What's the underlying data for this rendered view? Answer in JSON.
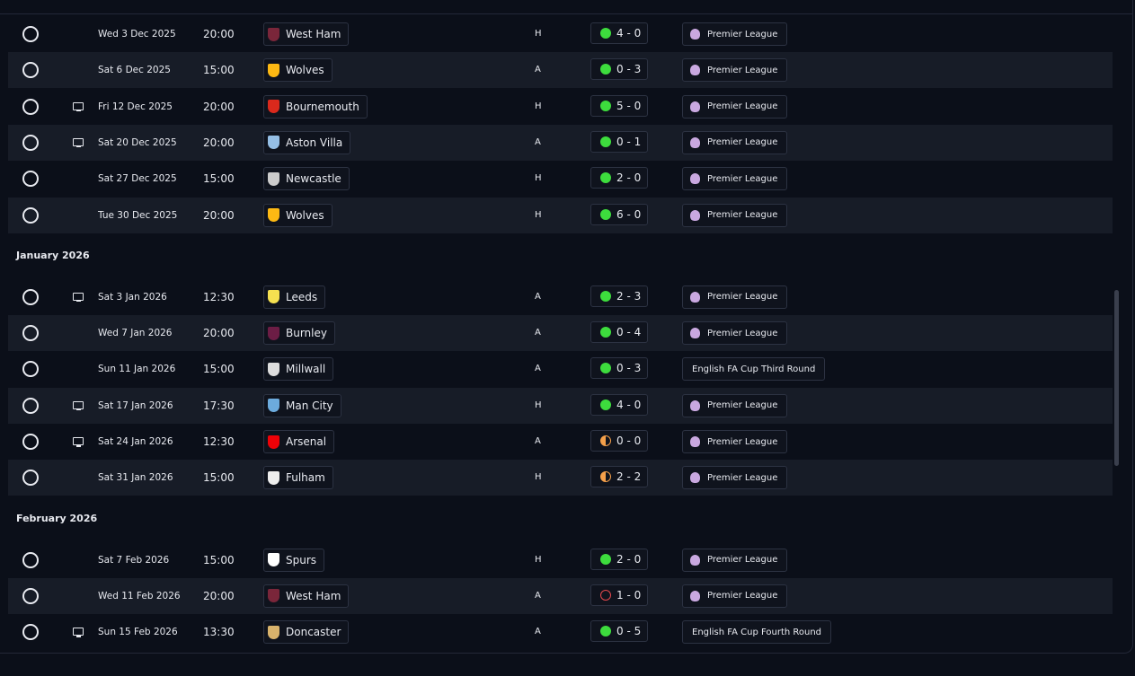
{
  "groups": [
    {
      "rows": [
        {
          "date": "Wed 3 Dec 2025",
          "time": "20:00",
          "opponent": "West Ham",
          "crest": "#7a263a",
          "venue": "H",
          "result": "4 - 0",
          "status_color": "#3ddc3d",
          "status_fill": true,
          "tv": false,
          "competition": "Premier League",
          "comp_icon": true
        },
        {
          "date": "Sat 6 Dec 2025",
          "time": "15:00",
          "opponent": "Wolves",
          "crest": "#fdb913",
          "venue": "A",
          "result": "0 - 3",
          "status_color": "#3ddc3d",
          "status_fill": true,
          "tv": false,
          "competition": "Premier League",
          "comp_icon": true
        },
        {
          "date": "Fri 12 Dec 2025",
          "time": "20:00",
          "opponent": "Bournemouth",
          "crest": "#da291c",
          "venue": "H",
          "result": "5 - 0",
          "status_color": "#3ddc3d",
          "status_fill": true,
          "tv": true,
          "competition": "Premier League",
          "comp_icon": true
        },
        {
          "date": "Sat 20 Dec 2025",
          "time": "20:00",
          "opponent": "Aston Villa",
          "crest": "#95bfe5",
          "venue": "A",
          "result": "0 - 1",
          "status_color": "#3ddc3d",
          "status_fill": true,
          "tv": true,
          "competition": "Premier League",
          "comp_icon": true
        },
        {
          "date": "Sat 27 Dec 2025",
          "time": "15:00",
          "opponent": "Newcastle",
          "crest": "#cccccc",
          "venue": "H",
          "result": "2 - 0",
          "status_color": "#3ddc3d",
          "status_fill": true,
          "tv": false,
          "competition": "Premier League",
          "comp_icon": true
        },
        {
          "date": "Tue 30 Dec 2025",
          "time": "20:00",
          "opponent": "Wolves",
          "crest": "#fdb913",
          "venue": "H",
          "result": "6 - 0",
          "status_color": "#3ddc3d",
          "status_fill": true,
          "tv": false,
          "competition": "Premier League",
          "comp_icon": true
        }
      ]
    },
    {
      "title": "January 2026",
      "rows": [
        {
          "date": "Sat 3 Jan 2026",
          "time": "12:30",
          "opponent": "Leeds",
          "crest": "#f5e050",
          "venue": "A",
          "result": "2 - 3",
          "status_color": "#3ddc3d",
          "status_fill": true,
          "tv": true,
          "competition": "Premier League",
          "comp_icon": true
        },
        {
          "date": "Wed 7 Jan 2026",
          "time": "20:00",
          "opponent": "Burnley",
          "crest": "#6c1d45",
          "venue": "A",
          "result": "0 - 4",
          "status_color": "#3ddc3d",
          "status_fill": true,
          "tv": false,
          "competition": "Premier League",
          "comp_icon": true
        },
        {
          "date": "Sun 11 Jan 2026",
          "time": "15:00",
          "opponent": "Millwall",
          "crest": "#dddddd",
          "venue": "A",
          "result": "0 - 3",
          "status_color": "#3ddc3d",
          "status_fill": true,
          "tv": false,
          "competition": "English FA Cup Third Round",
          "comp_icon": false
        },
        {
          "date": "Sat 17 Jan 2026",
          "time": "17:30",
          "opponent": "Man City",
          "crest": "#6cabdd",
          "venue": "H",
          "result": "4 - 0",
          "status_color": "#3ddc3d",
          "status_fill": true,
          "tv": true,
          "competition": "Premier League",
          "comp_icon": true
        },
        {
          "date": "Sat 24 Jan 2026",
          "time": "12:30",
          "opponent": "Arsenal",
          "crest": "#ef0107",
          "venue": "A",
          "result": "0 - 0",
          "status_color": "#f5a04a",
          "status_fill": true,
          "tv": true,
          "competition": "Premier League",
          "comp_icon": true
        },
        {
          "date": "Sat 31 Jan 2026",
          "time": "15:00",
          "opponent": "Fulham",
          "crest": "#eeeeee",
          "venue": "H",
          "result": "2 - 2",
          "status_color": "#f5a04a",
          "status_fill": true,
          "tv": false,
          "competition": "Premier League",
          "comp_icon": true
        }
      ]
    },
    {
      "title": "February 2026",
      "rows": [
        {
          "date": "Sat 7 Feb 2026",
          "time": "15:00",
          "opponent": "Spurs",
          "crest": "#ffffff",
          "venue": "H",
          "result": "2 - 0",
          "status_color": "#3ddc3d",
          "status_fill": true,
          "tv": false,
          "competition": "Premier League",
          "comp_icon": true
        },
        {
          "date": "Wed 11 Feb 2026",
          "time": "20:00",
          "opponent": "West Ham",
          "crest": "#7a263a",
          "venue": "A",
          "result": "1 - 0",
          "status_color": "#e5484d",
          "status_fill": false,
          "tv": false,
          "competition": "Premier League",
          "comp_icon": true
        },
        {
          "date": "Sun 15 Feb 2026",
          "time": "13:30",
          "opponent": "Doncaster",
          "crest": "#d9b36c",
          "venue": "A",
          "result": "0 - 5",
          "status_color": "#3ddc3d",
          "status_fill": true,
          "tv": true,
          "competition": "English FA Cup Fourth Round",
          "comp_icon": false
        }
      ]
    }
  ]
}
